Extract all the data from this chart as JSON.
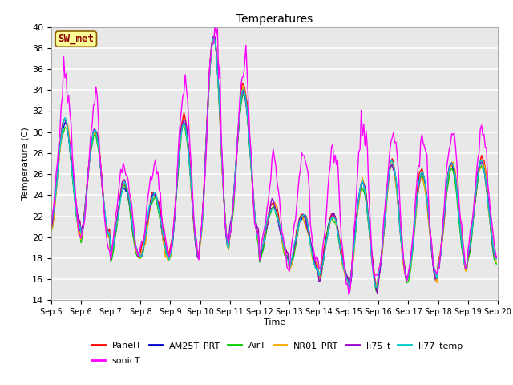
{
  "title": "Temperatures",
  "xlabel": "Time",
  "ylabel": "Temperature (C)",
  "ylim": [
    14,
    40
  ],
  "xlim": [
    0,
    360
  ],
  "annotation": "SW_met",
  "series_names": [
    "PanelT",
    "AM25T_PRT",
    "AirT",
    "NR01_PRT",
    "li75_t",
    "li77_temp",
    "sonicT"
  ],
  "series_colors": [
    "#ff0000",
    "#0000cc",
    "#00cc00",
    "#ffaa00",
    "#9900cc",
    "#00cccc",
    "#ff00ff"
  ],
  "xtick_labels": [
    "Sep 5",
    "Sep 6",
    "Sep 7",
    "Sep 8",
    "Sep 9",
    "Sep 10",
    "Sep 11",
    "Sep 12",
    "Sep 13",
    "Sep 14",
    "Sep 15",
    "Sep 16",
    "Sep 17",
    "Sep 18",
    "Sep 19",
    "Sep 20"
  ],
  "xtick_positions": [
    0,
    24,
    48,
    72,
    96,
    120,
    144,
    168,
    192,
    216,
    240,
    264,
    288,
    312,
    336,
    360
  ],
  "ytick_positions": [
    14,
    16,
    18,
    20,
    22,
    24,
    26,
    28,
    30,
    32,
    34,
    36,
    38,
    40
  ],
  "fig_facecolor": "#ffffff",
  "ax_facecolor": "#e8e8e8",
  "grid_color": "#ffffff",
  "linewidth": 1.0,
  "daily_highs": [
    31,
    30,
    25,
    24,
    31,
    39,
    34,
    23,
    22,
    22,
    25,
    27,
    26,
    27,
    27
  ],
  "daily_lows": [
    21,
    20,
    18,
    18,
    18,
    19,
    20,
    18,
    17,
    16,
    15,
    16,
    16,
    17,
    18
  ],
  "sonic_daily_highs": [
    34,
    31,
    26,
    26,
    34,
    39,
    35,
    26,
    27,
    27,
    29,
    29,
    28,
    30,
    29
  ],
  "sonic_daily_lows": [
    21,
    20,
    18,
    18,
    18,
    19,
    20,
    18,
    17,
    16,
    15,
    16,
    16,
    17,
    18
  ]
}
